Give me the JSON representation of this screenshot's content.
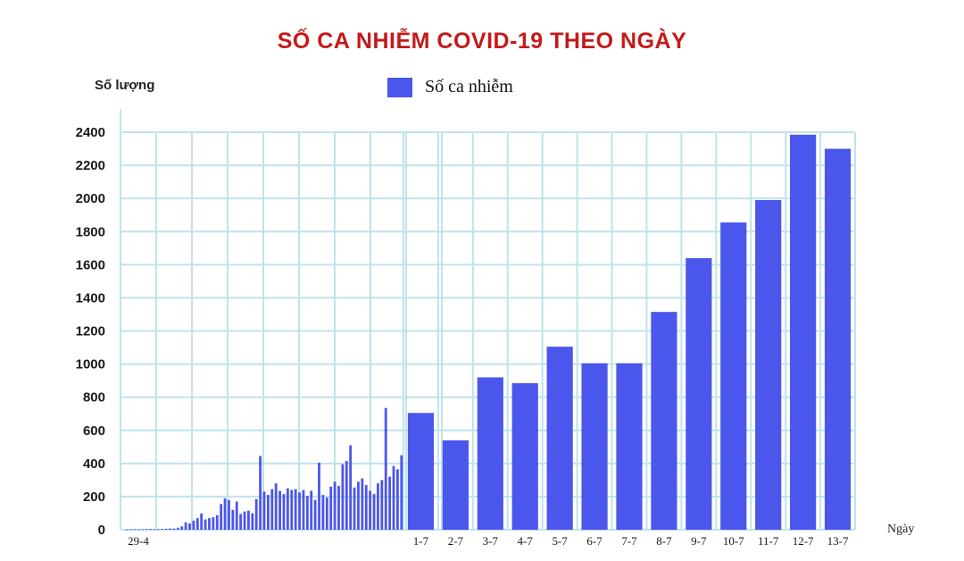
{
  "chart_data": {
    "type": "bar",
    "title": "SỐ CA NHIỄM COVID-19 THEO NGÀY",
    "ylabel": "Số lượng",
    "xlabel": "Ngày",
    "ylim": [
      0,
      2400
    ],
    "yticks": [
      0,
      200,
      400,
      600,
      800,
      1000,
      1200,
      1400,
      1600,
      1800,
      2000,
      2200,
      2400
    ],
    "grid": true,
    "legend_position": "top-center",
    "color": "#4b56ec",
    "grid_color": "#bfe3ec",
    "series": [
      {
        "name": "Số ca nhiễm",
        "early_start_label": "29-4",
        "early_values": [
          2,
          3,
          4,
          2,
          3,
          4,
          5,
          3,
          4,
          5,
          6,
          8,
          7,
          12,
          20,
          45,
          38,
          55,
          70,
          98,
          62,
          70,
          75,
          88,
          155,
          190,
          180,
          120,
          170,
          95,
          110,
          115,
          100,
          185,
          445,
          230,
          210,
          245,
          280,
          235,
          215,
          250,
          240,
          245,
          225,
          240,
          205,
          235,
          180,
          405,
          210,
          195,
          260,
          290,
          265,
          395,
          415,
          510,
          255,
          290,
          310,
          270,
          235,
          215,
          280,
          300,
          735,
          320,
          385,
          365,
          450
        ],
        "categories": [
          "1-7",
          "2-7",
          "3-7",
          "4-7",
          "5-7",
          "6-7",
          "7-7",
          "8-7",
          "9-7",
          "10-7",
          "11-7",
          "12-7",
          "13-7"
        ],
        "values": [
          705,
          540,
          920,
          885,
          1105,
          1005,
          1005,
          1315,
          1640,
          1855,
          1990,
          2385,
          2300
        ]
      }
    ]
  }
}
